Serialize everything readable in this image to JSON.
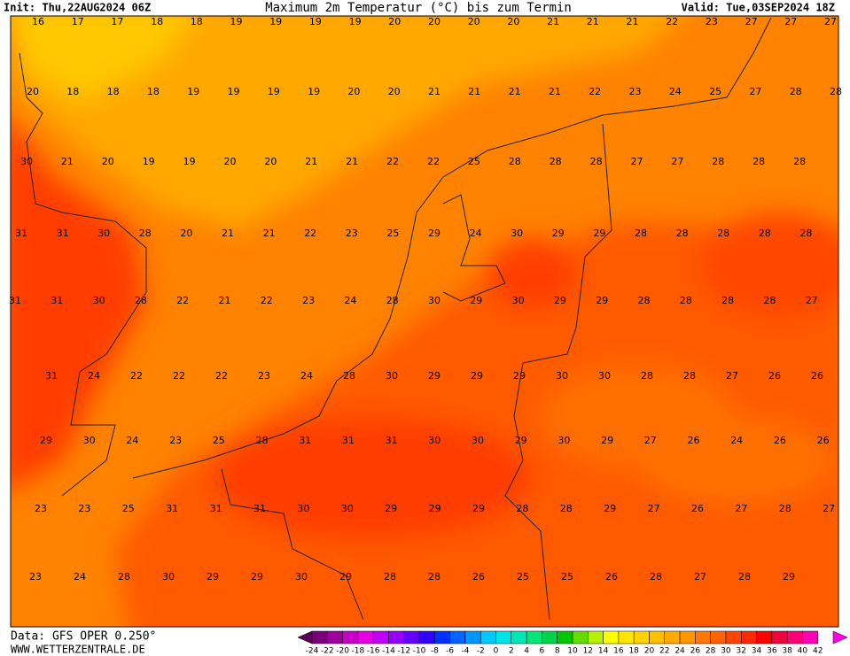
{
  "header": {
    "init": "Init: Thu,22AUG2024 06Z",
    "title": "Maximum 2m Temperatur (°C) bis zum Termin",
    "valid": "Valid: Tue,03SEP2024 18Z"
  },
  "map": {
    "rows": [
      [
        16,
        17,
        17,
        18,
        18,
        19,
        19,
        19,
        19,
        20,
        20,
        20,
        20,
        21,
        21,
        21,
        22,
        23,
        27,
        27,
        27
      ],
      [
        20,
        18,
        18,
        18,
        19,
        19,
        19,
        19,
        20,
        20,
        21,
        21,
        21,
        21,
        22,
        23,
        24,
        25,
        27,
        28,
        28
      ],
      [
        30,
        21,
        20,
        19,
        19,
        20,
        20,
        21,
        21,
        22,
        22,
        25,
        28,
        28,
        28,
        27,
        27,
        28,
        28,
        28
      ],
      [
        31,
        31,
        30,
        28,
        20,
        21,
        21,
        22,
        23,
        25,
        29,
        24,
        30,
        29,
        29,
        28,
        28,
        28,
        28,
        28
      ],
      [
        31,
        31,
        30,
        28,
        22,
        21,
        22,
        23,
        24,
        28,
        30,
        29,
        30,
        29,
        29,
        28,
        28,
        28,
        28,
        27
      ],
      [
        31,
        24,
        22,
        22,
        22,
        23,
        24,
        28,
        30,
        29,
        29,
        29,
        30,
        30,
        28,
        28,
        27,
        26,
        26
      ],
      [
        29,
        30,
        24,
        23,
        25,
        28,
        31,
        31,
        31,
        30,
        30,
        29,
        30,
        29,
        27,
        26,
        24,
        26,
        26
      ],
      [
        23,
        23,
        25,
        31,
        31,
        31,
        30,
        30,
        29,
        29,
        29,
        28,
        28,
        29,
        27,
        26,
        27,
        28,
        27
      ],
      [
        23,
        24,
        28,
        30,
        29,
        29,
        30,
        29,
        28,
        28,
        26,
        25,
        25,
        26,
        28,
        27,
        28,
        29
      ]
    ]
  },
  "legend": {
    "ticks": [
      -24,
      -22,
      -20,
      -18,
      -16,
      -14,
      -12,
      -10,
      -8,
      -6,
      -4,
      -2,
      0,
      2,
      4,
      6,
      8,
      10,
      12,
      14,
      16,
      18,
      20,
      22,
      24,
      26,
      28,
      30,
      32,
      34,
      36,
      38,
      40,
      42
    ],
    "colors": [
      "#5a005a",
      "#7a007a",
      "#a000a0",
      "#c800c8",
      "#e600e6",
      "#c000ff",
      "#9600ff",
      "#6400ff",
      "#3200ff",
      "#0032ff",
      "#0064ff",
      "#0096ff",
      "#00c8ff",
      "#00e6e6",
      "#00e6b4",
      "#00e678",
      "#00d24b",
      "#00c800",
      "#64dc00",
      "#b4f000",
      "#ffff00",
      "#ffe600",
      "#ffd200",
      "#ffbe00",
      "#ffaa00",
      "#ff9600",
      "#ff7800",
      "#ff6400",
      "#ff4600",
      "#ff2800",
      "#ff0000",
      "#f0003c",
      "#ff0078",
      "#ff00b4",
      "#ff00e6"
    ]
  },
  "footer": {
    "source": "Data: GFS OPER 0.250°",
    "site": "WWW.WETTERZENTRALE.DE"
  }
}
